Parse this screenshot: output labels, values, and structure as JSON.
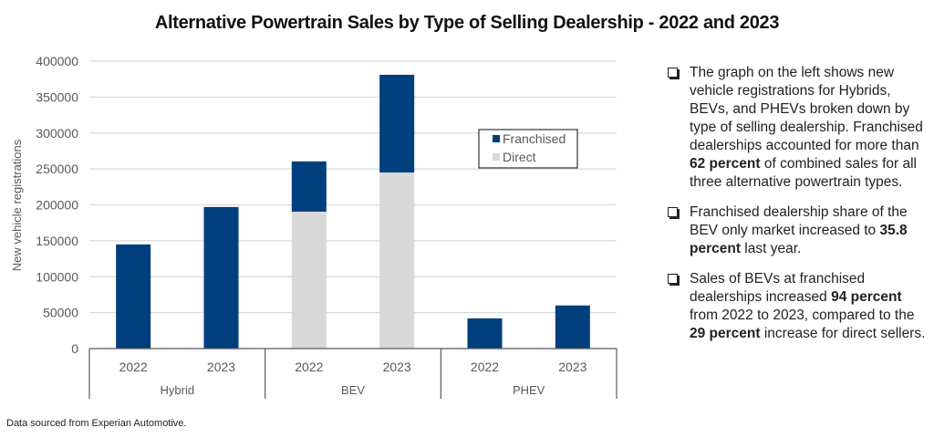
{
  "chart_data": {
    "type": "bar",
    "stacked": true,
    "title": "Alternative Powertrain Sales by Type of Selling Dealership - 2022 and 2023",
    "xlabel": "",
    "ylabel": "New vehicle registrations",
    "ylim": [
      0,
      400000
    ],
    "yticks": [
      "0",
      "50000",
      "100000",
      "150000",
      "200000",
      "250000",
      "300000",
      "350000",
      "400000"
    ],
    "grid": true,
    "legend_position": "center-right",
    "groups": [
      {
        "name": "Hybrid",
        "categories": [
          "2022",
          "2023"
        ]
      },
      {
        "name": "BEV",
        "categories": [
          "2022",
          "2023"
        ]
      },
      {
        "name": "PHEV",
        "categories": [
          "2022",
          "2023"
        ]
      }
    ],
    "categories": [
      "Hybrid 2022",
      "Hybrid 2023",
      "BEV 2022",
      "BEV 2023",
      "PHEV 2022",
      "PHEV 2023"
    ],
    "series": [
      {
        "name": "Direct",
        "color": "#d9d9d9",
        "values": [
          0,
          0,
          190500,
          245000,
          0,
          0
        ]
      },
      {
        "name": "Franchised",
        "color": "#003f7d",
        "values": [
          145000,
          197000,
          70000,
          136000,
          42000,
          60000
        ]
      }
    ],
    "legend": [
      {
        "name": "Franchised",
        "color": "#003f7d"
      },
      {
        "name": "Direct",
        "color": "#d9d9d9"
      }
    ]
  },
  "notes": [
    {
      "parts": [
        {
          "text": "The graph on the left shows new vehicle registrations for Hybrids, BEVs, and PHEVs broken down by type of selling dealership. Franchised dealerships accounted for more than ",
          "bold": false
        },
        {
          "text": "62 percent",
          "bold": true
        },
        {
          "text": " of combined sales for all three alternative powertrain types.",
          "bold": false
        }
      ]
    },
    {
      "parts": [
        {
          "text": "Franchised dealership share of the BEV only market increased to ",
          "bold": false
        },
        {
          "text": "35.8 percent",
          "bold": true
        },
        {
          "text": " last year.",
          "bold": false
        }
      ]
    },
    {
      "parts": [
        {
          "text": "Sales of BEVs at franchised dealerships increased ",
          "bold": false
        },
        {
          "text": "94 percent",
          "bold": true
        },
        {
          "text": " from 2022 to 2023, compared to the ",
          "bold": false
        },
        {
          "text": "29 percent",
          "bold": true
        },
        {
          "text": " increase for direct sellers.",
          "bold": false
        }
      ]
    }
  ],
  "source": "Data sourced from Experian Automotive."
}
